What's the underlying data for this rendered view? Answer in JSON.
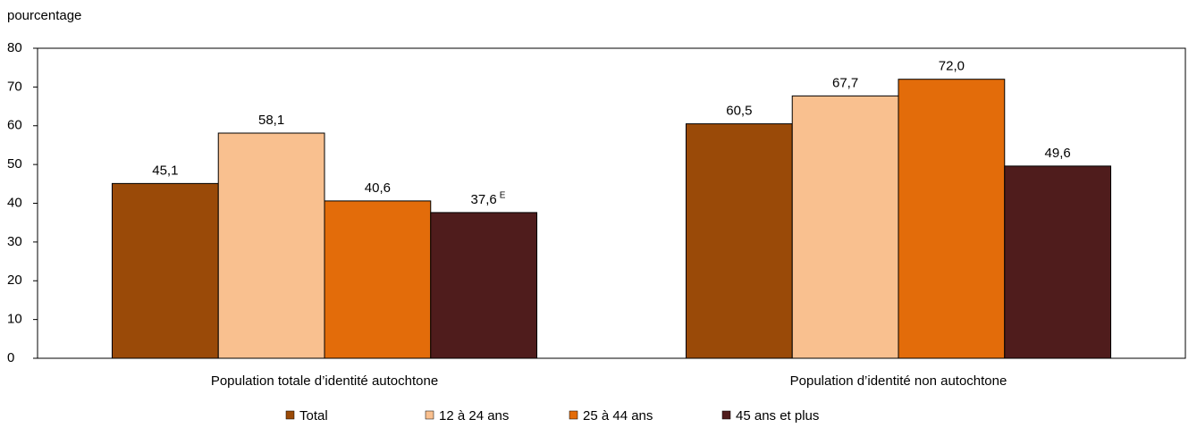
{
  "chart_data": {
    "type": "bar",
    "ylabel": "pourcentage",
    "categories": [
      "Population totale d’identité autochtone",
      "Population d’identité non autochtone"
    ],
    "series": [
      {
        "name": "Total",
        "color": "#9a4a08",
        "values": [
          45.1,
          60.5
        ],
        "value_labels": [
          "45,1",
          "60,5"
        ]
      },
      {
        "name": "12 à 24 ans",
        "color": "#f9c08f",
        "values": [
          58.1,
          67.7
        ],
        "value_labels": [
          "58,1",
          "67,7"
        ]
      },
      {
        "name": "25 à 44 ans",
        "color": "#e36c0a",
        "values": [
          40.6,
          72.0
        ],
        "value_labels": [
          "40,6",
          "72,0"
        ]
      },
      {
        "name": "45 ans et plus",
        "color": "#4f1c1c",
        "values": [
          37.6,
          49.6
        ],
        "value_labels": [
          "37,6",
          "49,6"
        ]
      }
    ],
    "annotations": [
      {
        "text": "E",
        "series": 3,
        "category": 0
      }
    ],
    "ylim": [
      0,
      80
    ],
    "yticks": [
      0,
      10,
      20,
      30,
      40,
      50,
      60,
      70,
      80
    ],
    "legend": "bottom"
  }
}
